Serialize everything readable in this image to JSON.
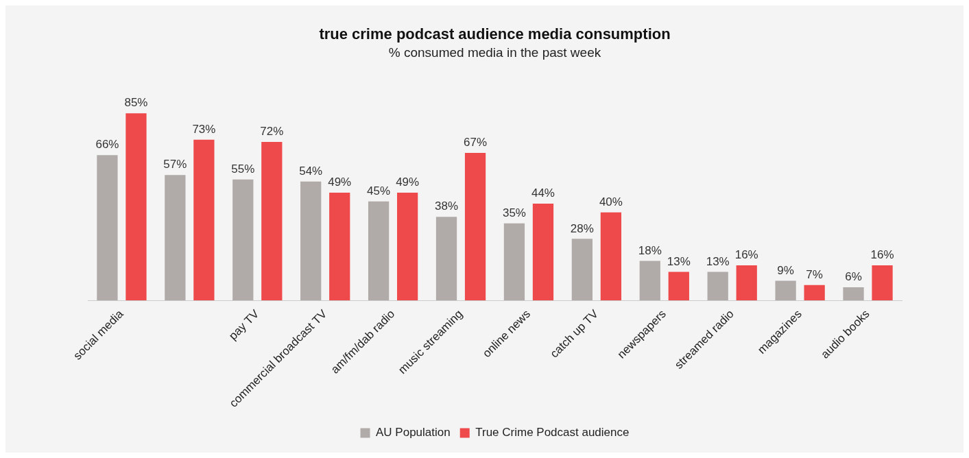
{
  "chart_data": {
    "type": "bar",
    "title": "true crime podcast audience media consumption",
    "subtitle": "% consumed media in the past week",
    "categories": [
      "social media",
      null,
      "pay TV",
      "commercial broadcast TV",
      "am/fm/dab radio",
      "music streaming",
      "online news",
      "catch up TV",
      "newspapers",
      "streamed radio",
      "magazines",
      "audio books"
    ],
    "series": [
      {
        "name": "AU Population",
        "color": "#b0aba9",
        "values": [
          66,
          57,
          55,
          54,
          45,
          38,
          35,
          28,
          18,
          13,
          9,
          6
        ],
        "value_labels": [
          "66%",
          "57%",
          "55%",
          "54%",
          "45%",
          "38%",
          "35%",
          "28%",
          "18%",
          "13%",
          "9%",
          "6%"
        ]
      },
      {
        "name": "True Crime Podcast audience",
        "color": "#ef4a4b",
        "values": [
          85,
          73,
          72,
          49,
          49,
          67,
          44,
          40,
          13,
          16,
          7,
          16
        ],
        "value_labels": [
          "85%",
          "73%",
          "72%",
          "49%",
          "49%",
          "67%",
          "44%",
          "40%",
          "13%",
          "16%",
          "7%",
          "16%"
        ]
      }
    ],
    "grid": false,
    "legend": "bottom"
  }
}
